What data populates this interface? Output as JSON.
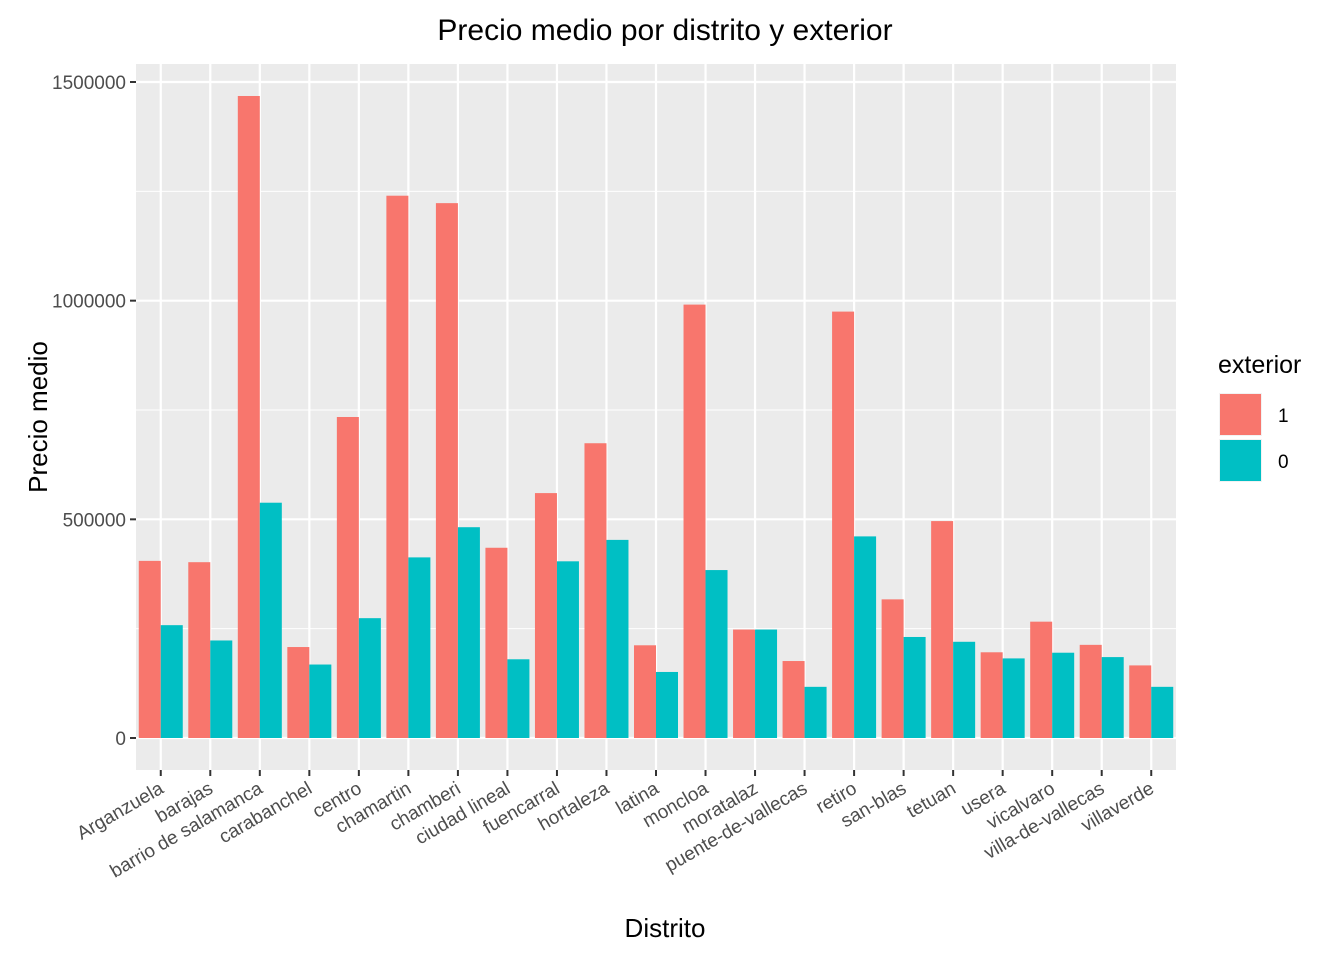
{
  "chart_data": {
    "type": "bar",
    "title": "Precio medio por distrito y exterior",
    "xlabel": "Distrito",
    "ylabel": "Precio medio",
    "ylim": [
      -65000,
      1565000
    ],
    "yticks": [
      0,
      500000,
      1000000,
      1500000
    ],
    "ytick_labels": [
      "0",
      "500000",
      "1000000",
      "1500000"
    ],
    "grid": true,
    "background": "#ebebeb",
    "legend": {
      "title": "exterior",
      "placement": "right"
    },
    "categories": [
      "Arganzuela",
      "barajas",
      "barrio de salamanca",
      "carabanchel",
      "centro",
      "chamartin",
      "chamberi",
      "ciudad lineal",
      "fuencarral",
      "hortaleza",
      "latina",
      "moncloa",
      "moratalaz",
      "puente-de-vallecas",
      "retiro",
      "san-blas",
      "tetuan",
      "usera",
      "vicalvaro",
      "villa-de-vallecas",
      "villaverde"
    ],
    "series": [
      {
        "name": "1",
        "color": "#f8766d",
        "values": [
          405000,
          402000,
          1468000,
          208000,
          734000,
          1240000,
          1223000,
          435000,
          560000,
          674000,
          212000,
          991000,
          248000,
          176000,
          975000,
          317000,
          496000,
          196000,
          266000,
          213000,
          166000
        ]
      },
      {
        "name": "0",
        "color": "#00bfc4",
        "values": [
          258000,
          223000,
          538000,
          168000,
          274000,
          413000,
          482000,
          180000,
          404000,
          453000,
          151000,
          384000,
          248000,
          117000,
          461000,
          231000,
          220000,
          182000,
          195000,
          185000,
          117000
        ]
      }
    ]
  }
}
